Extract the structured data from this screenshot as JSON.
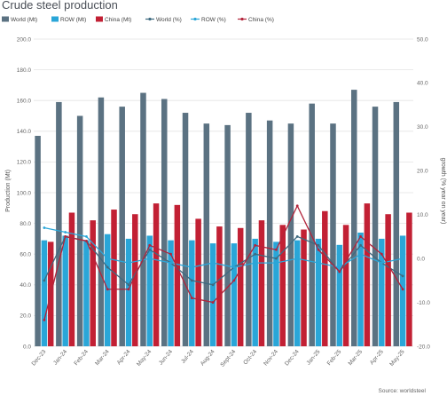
{
  "chart_data": {
    "type": "bar",
    "title": "Crude steel production",
    "ylabel": "Production (Mt)",
    "y2label": "growth (% year on year)",
    "source": "Source: worldsteel",
    "ylim": [
      0,
      200
    ],
    "y2lim": [
      -20,
      50
    ],
    "yticks": [
      "0.0",
      "20.0",
      "40.0",
      "60.0",
      "80.0",
      "100.0",
      "120.0",
      "140.0",
      "160.0",
      "180.0",
      "200.0"
    ],
    "y2ticks": [
      "-20.0",
      "-10.0",
      "0.0",
      "10.0",
      "20.0",
      "30.0",
      "40.0",
      "50.0"
    ],
    "categories": [
      "Dec-23",
      "Jan-24",
      "Feb-24",
      "Mar-24",
      "Apr-24",
      "May-24",
      "Jun-24",
      "Jul-24",
      "Aug-24",
      "Sept-24",
      "Oct-24",
      "Nov-24",
      "Dec-24",
      "Jan-25",
      "Feb-25",
      "Mar-25",
      "Apr-25",
      "May-25"
    ],
    "legend": [
      "World (Mt)",
      "ROW (Mt)",
      "China (Mt)",
      "World (%)",
      "ROW (%)",
      "China (%)"
    ],
    "colors": {
      "world_bar": "#5b7282",
      "row_bar": "#2aa6d8",
      "china_bar": "#c22034",
      "world_line": "#3e6a80",
      "row_line": "#2aa6d8",
      "china_line": "#b2233a"
    },
    "bar_series": [
      {
        "name": "World (Mt)",
        "values": [
          137,
          159,
          150,
          162,
          156,
          165,
          161,
          152,
          145,
          144,
          152,
          147,
          145,
          158,
          145,
          167,
          156,
          159
        ]
      },
      {
        "name": "ROW (Mt)",
        "values": [
          69,
          72,
          69,
          73,
          70,
          72,
          69,
          69,
          67,
          67,
          70,
          68,
          69,
          70,
          66,
          74,
          70,
          72
        ]
      },
      {
        "name": "China (Mt)",
        "values": [
          68,
          87,
          82,
          89,
          86,
          93,
          92,
          83,
          78,
          77,
          82,
          79,
          76,
          88,
          79,
          93,
          86,
          87
        ]
      }
    ],
    "line_series": [
      {
        "name": "World (%)",
        "values": [
          -5,
          5,
          4,
          -2,
          -6,
          2,
          -1,
          -5,
          -6,
          -2,
          1,
          0,
          5,
          3,
          -3,
          3,
          -1,
          -4
        ]
      },
      {
        "name": "ROW (%)",
        "values": [
          7,
          6,
          5,
          0,
          -1,
          0,
          -1,
          -2,
          -1,
          -2,
          -1,
          -1,
          0,
          -1,
          -2,
          1,
          -1,
          0
        ]
      },
      {
        "name": "China (%)",
        "values": [
          -14,
          5,
          4,
          -7,
          -7,
          3,
          1,
          -9,
          -10,
          -5,
          3,
          2,
          12,
          2,
          -3,
          5,
          1,
          -7
        ]
      }
    ]
  }
}
